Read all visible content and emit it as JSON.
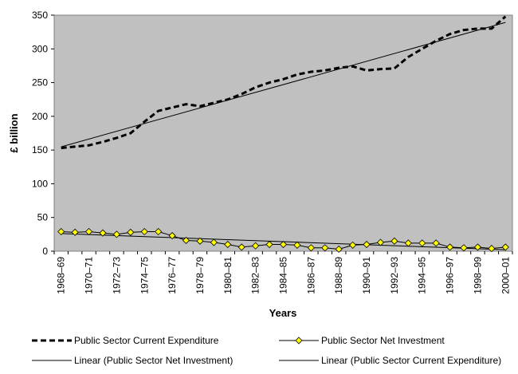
{
  "chart_data": {
    "type": "line",
    "y_label": "£ billion",
    "x_label": "Years",
    "categories": [
      "1968–69",
      null,
      "1970–71",
      null,
      "1972–73",
      null,
      "1974–75",
      null,
      "1976–77",
      null,
      "1978–79",
      null,
      "1980–81",
      null,
      "1982–83",
      null,
      "1984–85",
      null,
      "1986–87",
      null,
      "1988–89",
      null,
      "1990–91",
      null,
      "1992–93",
      null,
      "1994–95",
      null,
      "1996–97",
      null,
      "1998–99",
      null,
      "2000–01"
    ],
    "ylim": [
      0,
      350
    ],
    "yticks": [
      0,
      50,
      100,
      150,
      200,
      250,
      300,
      350
    ],
    "background": "#c0c0c0",
    "series": [
      {
        "name": "Public Sector Current Expenditure",
        "color": "#000000",
        "dashed": true,
        "trendline": {
          "name": "Linear (Public Sector Current Expenditure)",
          "color": "#000000"
        },
        "values": [
          153,
          155,
          157,
          162,
          168,
          175,
          192,
          208,
          213,
          218,
          215,
          220,
          225,
          233,
          243,
          250,
          255,
          262,
          266,
          268,
          272,
          274,
          268,
          270,
          271,
          288,
          300,
          312,
          322,
          328,
          330,
          330,
          348
        ]
      },
      {
        "name": "Public Sector Net Investment",
        "color": "#000000",
        "marker_color": "#ffff00",
        "trendline": {
          "name": "Linear (Public Sector Net Investment)",
          "color": "#000000"
        },
        "values": [
          29,
          28,
          29,
          27,
          25,
          28,
          29,
          29,
          23,
          16,
          15,
          13,
          10,
          6,
          8,
          10,
          10,
          9,
          5,
          5,
          3,
          9,
          10,
          13,
          15,
          12,
          12,
          12,
          6,
          5,
          6,
          4,
          6
        ]
      }
    ]
  }
}
